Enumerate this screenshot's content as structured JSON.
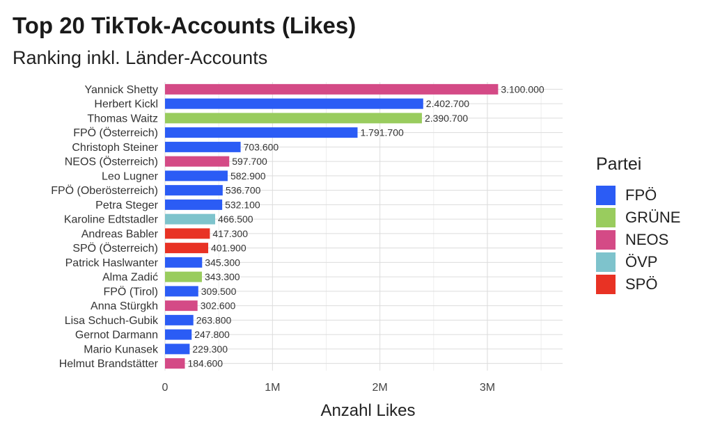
{
  "title": "Top 20 TikTok-Accounts (Likes)",
  "subtitle": "Ranking inkl. Länder-Accounts",
  "legend": {
    "title": "Partei",
    "items": [
      {
        "label": "FPÖ",
        "color": "#2b5cf5"
      },
      {
        "label": "GRÜNE",
        "color": "#99cc5e"
      },
      {
        "label": "NEOS",
        "color": "#d44a86"
      },
      {
        "label": "ÖVP",
        "color": "#7ec3cc"
      },
      {
        "label": "SPÖ",
        "color": "#e83224"
      }
    ]
  },
  "chart_data": {
    "type": "bar",
    "orientation": "horizontal",
    "xlabel": "Anzahl Likes",
    "xlim": [
      0,
      3700000
    ],
    "xticks": [
      {
        "value": 0,
        "label": "0"
      },
      {
        "value": 1000000,
        "label": "1M"
      },
      {
        "value": 2000000,
        "label": "2M"
      },
      {
        "value": 3000000,
        "label": "3M"
      }
    ],
    "grid": true,
    "legend_position": "right",
    "categories": [
      "Yannick Shetty",
      "Herbert Kickl",
      "Thomas Waitz",
      "FPÖ (Österreich)",
      "Christoph Steiner",
      "NEOS (Österreich)",
      "Leo Lugner",
      "FPÖ (Oberösterreich)",
      "Petra Steger",
      "Karoline Edtstadler",
      "Andreas Babler",
      "SPÖ (Österreich)",
      "Patrick Haslwanter",
      "Alma Zadić",
      "FPÖ (Tirol)",
      "Anna Stürgkh",
      "Lisa Schuch-Gubik",
      "Gernot Darmann",
      "Mario Kunasek",
      "Helmut Brandstätter"
    ],
    "values": [
      3100000,
      2402700,
      2390700,
      1791700,
      703600,
      597700,
      582900,
      536700,
      532100,
      466500,
      417300,
      401900,
      345300,
      343300,
      309500,
      302600,
      263800,
      247800,
      229300,
      184600
    ],
    "labels": [
      "3.100.000",
      "2.402.700",
      "2.390.700",
      "1.791.700",
      "703.600",
      "597.700",
      "582.900",
      "536.700",
      "532.100",
      "466.500",
      "417.300",
      "401.900",
      "345.300",
      "343.300",
      "309.500",
      "302.600",
      "263.800",
      "247.800",
      "229.300",
      "184.600"
    ],
    "party": [
      "NEOS",
      "FPÖ",
      "GRÜNE",
      "FPÖ",
      "FPÖ",
      "NEOS",
      "FPÖ",
      "FPÖ",
      "FPÖ",
      "ÖVP",
      "SPÖ",
      "SPÖ",
      "FPÖ",
      "GRÜNE",
      "FPÖ",
      "NEOS",
      "FPÖ",
      "FPÖ",
      "FPÖ",
      "NEOS"
    ]
  }
}
